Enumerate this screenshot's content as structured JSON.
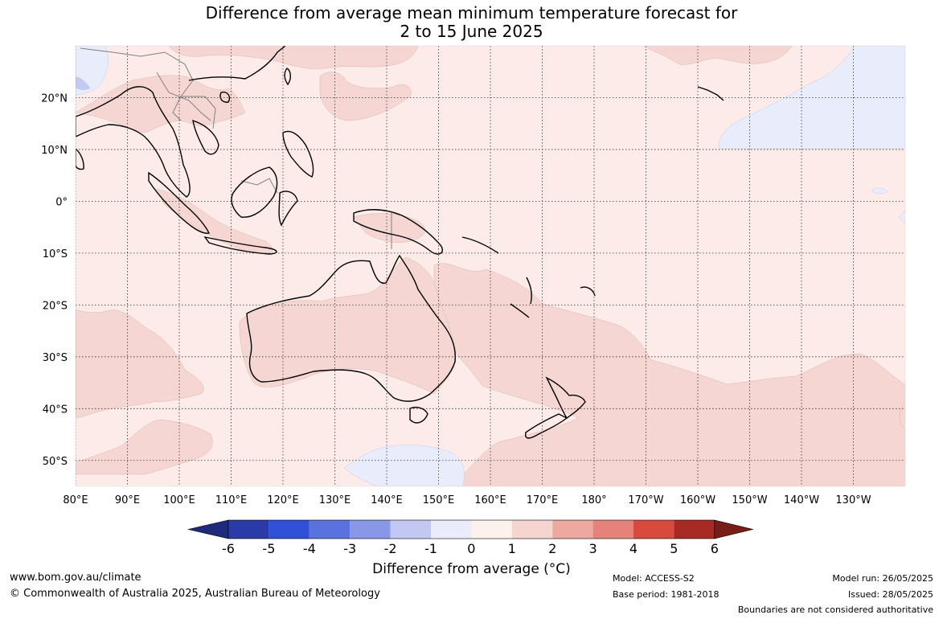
{
  "title": {
    "line1": "Difference from average mean minimum temperature forecast for",
    "line2": "2 to 15 June 2025"
  },
  "map": {
    "lon_labels": [
      "80°E",
      "90°E",
      "100°E",
      "110°E",
      "120°E",
      "130°E",
      "140°E",
      "150°E",
      "160°E",
      "170°E",
      "180°",
      "170°W",
      "160°W",
      "150°W",
      "140°W",
      "130°W"
    ],
    "lat_labels": [
      "20°N",
      "10°N",
      "0°",
      "10°S",
      "20°S",
      "30°S",
      "40°S",
      "50°S"
    ],
    "lon_range": [
      80,
      240
    ],
    "lat_range": [
      -55,
      30
    ],
    "gridlines": "dotted",
    "dominant_category": "0 to 1",
    "colors": {
      "ocean_base": "#fcebe8",
      "warm_1_2": "#f5d6d2",
      "cool_-1_0": "#e8ecfb",
      "cool_-2_-1": "#c3c9f3",
      "coast": "#000000",
      "borders": "#808080"
    }
  },
  "colorbar": {
    "ticks": [
      "-6",
      "-5",
      "-4",
      "-3",
      "-2",
      "-1",
      "0",
      "1",
      "2",
      "3",
      "4",
      "5",
      "6"
    ],
    "colors": [
      "#1e2a7a",
      "#2a3aa8",
      "#3050d8",
      "#5a72e0",
      "#8898e6",
      "#c2c8f2",
      "#eaecfb",
      "#fdf1ee",
      "#f6d4d0",
      "#eda8a0",
      "#e5837a",
      "#d94a3e",
      "#a82a24",
      "#7a1c18"
    ],
    "title": "Difference from average (°C)"
  },
  "footer": {
    "url": "www.bom.gov.au/climate",
    "copyright": "© Commonwealth of Australia 2025, Australian Bureau of Meteorology",
    "model": "Model: ACCESS-S2",
    "base_period": "Base period: 1981-2018",
    "model_run": "Model run: 26/05/2025",
    "issued": "Issued: 28/05/2025",
    "disclaimer": "Boundaries are not considered authoritative"
  }
}
